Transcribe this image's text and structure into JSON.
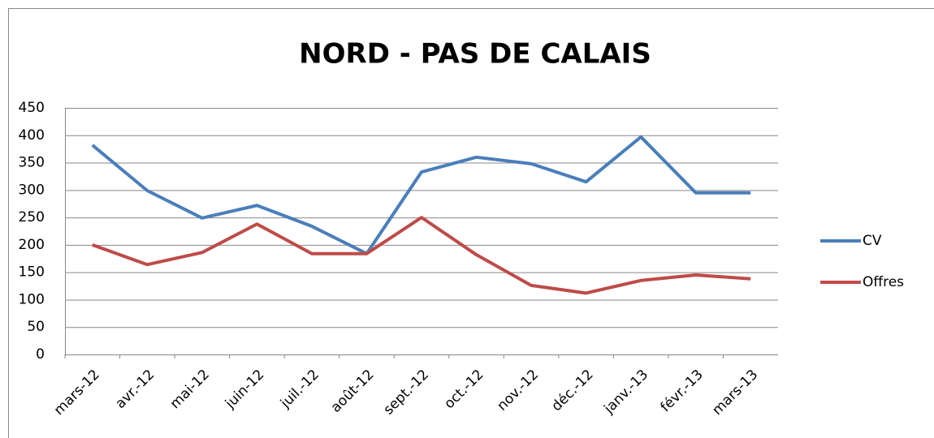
{
  "chart_data": {
    "type": "line",
    "title": "NORD - PAS DE CALAIS",
    "categories": [
      "mars-12",
      "avr.-12",
      "mai-12",
      "juin-12",
      "juil.-12",
      "août-12",
      "sept.-12",
      "oct.-12",
      "nov.-12",
      "déc.-12",
      "janv.-13",
      "févr.-13",
      "mars-13"
    ],
    "series": [
      {
        "name": "CV",
        "color": "#4a7ebb",
        "values": [
          382,
          299,
          249,
          272,
          234,
          184,
          333,
          360,
          348,
          315,
          397,
          295,
          295
        ]
      },
      {
        "name": "Offres",
        "color": "#be4b48",
        "values": [
          200,
          164,
          186,
          238,
          184,
          184,
          250,
          182,
          126,
          112,
          135,
          145,
          138
        ]
      }
    ],
    "ylim": [
      0,
      450
    ],
    "yticks": [
      0,
      50,
      100,
      150,
      200,
      250,
      300,
      350,
      400,
      450
    ],
    "grid": true,
    "legend": "right"
  }
}
